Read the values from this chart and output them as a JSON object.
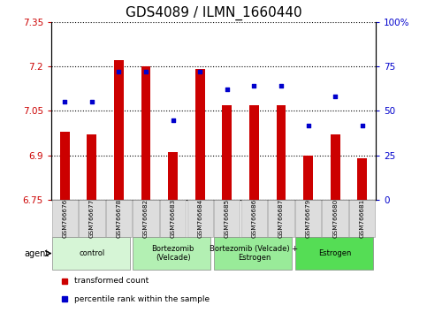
{
  "title": "GDS4089 / ILMN_1660440",
  "samples": [
    "GSM766676",
    "GSM766677",
    "GSM766678",
    "GSM766682",
    "GSM766683",
    "GSM766684",
    "GSM766685",
    "GSM766686",
    "GSM766687",
    "GSM766679",
    "GSM766680",
    "GSM766681"
  ],
  "bar_values": [
    6.98,
    6.97,
    7.22,
    7.2,
    6.91,
    7.19,
    7.07,
    7.07,
    7.07,
    6.9,
    6.97,
    6.89
  ],
  "dot_values": [
    55,
    55,
    72,
    72,
    45,
    72,
    62,
    64,
    64,
    42,
    58,
    42
  ],
  "ylim_left": [
    6.75,
    7.35
  ],
  "ylim_right": [
    0,
    100
  ],
  "yticks_left": [
    6.75,
    6.9,
    7.05,
    7.2,
    7.35
  ],
  "yticks_right": [
    0,
    25,
    50,
    75,
    100
  ],
  "ytick_labels_left": [
    "6.75",
    "6.9",
    "7.05",
    "7.2",
    "7.35"
  ],
  "ytick_labels_right": [
    "0",
    "25",
    "50",
    "75",
    "100%"
  ],
  "bar_color": "#cc0000",
  "dot_color": "#0000cc",
  "baseline": 6.75,
  "groups": [
    {
      "label": "control",
      "start": 0,
      "end": 3,
      "color": "#d6f5d6"
    },
    {
      "label": "Bortezomib\n(Velcade)",
      "start": 3,
      "end": 6,
      "color": "#b3f0b3"
    },
    {
      "label": "Bortezomib (Velcade) +\nEstrogen",
      "start": 6,
      "end": 9,
      "color": "#99eb99"
    },
    {
      "label": "Estrogen",
      "start": 9,
      "end": 12,
      "color": "#55dd55"
    }
  ],
  "legend_bar_label": "transformed count",
  "legend_dot_label": "percentile rank within the sample",
  "agent_label": "agent",
  "title_fontsize": 11,
  "axis_label_color_left": "#cc0000",
  "axis_label_color_right": "#0000cc",
  "bar_width": 0.35,
  "sample_box_color": "#dddddd",
  "sample_box_edge": "#aaaaaa"
}
